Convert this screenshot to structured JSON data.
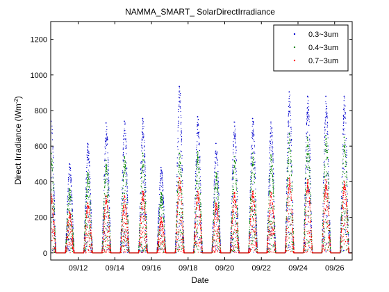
{
  "chart_data": {
    "type": "scatter",
    "title": "NAMMA_SMART_ SolarDirectIrradiance",
    "xlabel": "Date",
    "ylabel": "Direct Irradiance (Wm",
    "ylabel_sup": "-2",
    "ylabel_end": ")",
    "xlim": [
      "09/10 12:00",
      "09/26 23:00"
    ],
    "ylim": [
      -40,
      1300
    ],
    "y_ticks": [
      0,
      200,
      400,
      600,
      800,
      1000,
      1200
    ],
    "y_tick_labels": [
      "0",
      "200",
      "400",
      "600",
      "800",
      "1000",
      "1200"
    ],
    "x_tick_labels": [
      "09/12",
      "09/14",
      "09/16",
      "09/18",
      "09/20",
      "09/22",
      "09/24",
      "09/26"
    ],
    "grid": false,
    "legend_position": "top-right",
    "marker": "dot",
    "series": [
      {
        "name": "0.3~3um",
        "color": "#0000cc",
        "daily_peaks": [
          {
            "date": "09/10",
            "value": 740
          },
          {
            "date": "09/11",
            "value": 500
          },
          {
            "date": "09/12",
            "value": 615
          },
          {
            "date": "09/13",
            "value": 730
          },
          {
            "date": "09/14",
            "value": 740
          },
          {
            "date": "09/15",
            "value": 755
          },
          {
            "date": "09/16",
            "value": 480
          },
          {
            "date": "09/17",
            "value": 935
          },
          {
            "date": "09/18",
            "value": 765
          },
          {
            "date": "09/19",
            "value": 615
          },
          {
            "date": "09/20",
            "value": 735
          },
          {
            "date": "09/21",
            "value": 755
          },
          {
            "date": "09/22",
            "value": 735
          },
          {
            "date": "09/23",
            "value": 905
          },
          {
            "date": "09/24",
            "value": 880
          },
          {
            "date": "09/25",
            "value": 880
          },
          {
            "date": "09/26",
            "value": 880
          }
        ]
      },
      {
        "name": "0.4~3um",
        "color": "#008000",
        "daily_peaks": [
          {
            "date": "09/10",
            "value": 560
          },
          {
            "date": "09/11",
            "value": 360
          },
          {
            "date": "09/12",
            "value": 450
          },
          {
            "date": "09/13",
            "value": 520
          },
          {
            "date": "09/14",
            "value": 540
          },
          {
            "date": "09/15",
            "value": 560
          },
          {
            "date": "09/16",
            "value": 340
          },
          {
            "date": "09/17",
            "value": 560
          },
          {
            "date": "09/18",
            "value": 570
          },
          {
            "date": "09/19",
            "value": 450
          },
          {
            "date": "09/20",
            "value": 540
          },
          {
            "date": "09/21",
            "value": 560
          },
          {
            "date": "09/22",
            "value": 550
          },
          {
            "date": "09/23",
            "value": 670
          },
          {
            "date": "09/24",
            "value": 650
          },
          {
            "date": "09/25",
            "value": 660
          },
          {
            "date": "09/26",
            "value": 650
          }
        ]
      },
      {
        "name": "0.7~3um",
        "color": "#ff0000",
        "daily_peaks": [
          {
            "date": "09/10",
            "value": 330
          },
          {
            "date": "09/11",
            "value": 230
          },
          {
            "date": "09/12",
            "value": 280
          },
          {
            "date": "09/13",
            "value": 320
          },
          {
            "date": "09/14",
            "value": 320
          },
          {
            "date": "09/15",
            "value": 345
          },
          {
            "date": "09/16",
            "value": 200
          },
          {
            "date": "09/17",
            "value": 420
          },
          {
            "date": "09/18",
            "value": 345
          },
          {
            "date": "09/19",
            "value": 280
          },
          {
            "date": "09/20",
            "value": 340
          },
          {
            "date": "09/21",
            "value": 345
          },
          {
            "date": "09/22",
            "value": 340
          },
          {
            "date": "09/23",
            "value": 420
          },
          {
            "date": "09/24",
            "value": 410
          },
          {
            "date": "09/25",
            "value": 410
          },
          {
            "date": "09/26",
            "value": 400
          }
        ]
      }
    ]
  }
}
